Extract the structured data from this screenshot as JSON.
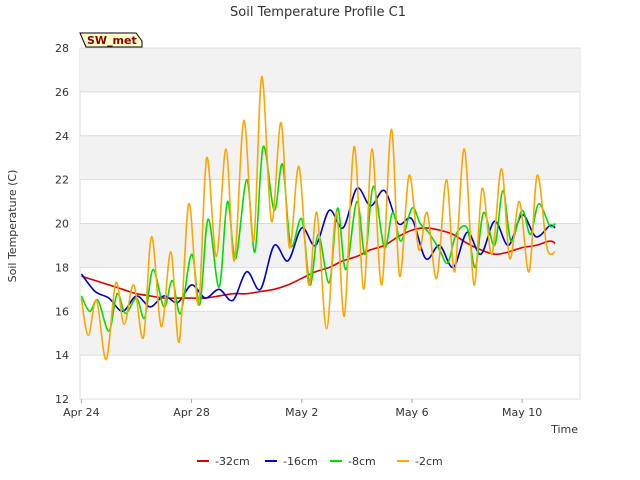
{
  "chart_data": {
    "type": "line",
    "title": "Soil Temperature Profile C1",
    "xlabel": "Time",
    "ylabel": "Soil Temperature (C)",
    "badge": "SW_met",
    "x_ticks": [
      "Apr 24",
      "Apr 28",
      "May 2",
      "May 6",
      "May 10"
    ],
    "x_range": [
      "Apr 23.95",
      "May 12.1"
    ],
    "ylim": [
      12,
      28
    ],
    "y_ticks": [
      12,
      14,
      16,
      18,
      20,
      22,
      24,
      26,
      28
    ],
    "grid": true,
    "legend_position": "bottom",
    "series": [
      {
        "name": "-32cm",
        "color": "#dd0000",
        "x": [
          0.0,
          0.5,
          1.0,
          1.5,
          2.0,
          2.5,
          3.0,
          3.5,
          4.0,
          4.5,
          5.0,
          5.5,
          6.0,
          6.5,
          7.0,
          7.5,
          8.0,
          8.5,
          9.0,
          9.5,
          10.0,
          10.5,
          11.0,
          11.5,
          12.0,
          12.5,
          13.0,
          13.5,
          14.0,
          14.5,
          15.0,
          15.5,
          16.0,
          16.5,
          17.0,
          17.2
        ],
        "values": [
          17.6,
          17.4,
          17.2,
          17.0,
          16.8,
          16.7,
          16.6,
          16.6,
          16.6,
          16.6,
          16.7,
          16.8,
          16.8,
          16.9,
          17.0,
          17.2,
          17.5,
          17.8,
          18.0,
          18.3,
          18.5,
          18.8,
          19.0,
          19.4,
          19.7,
          19.8,
          19.7,
          19.5,
          19.1,
          18.8,
          18.6,
          18.7,
          18.9,
          19.0,
          19.2,
          19.1
        ]
      },
      {
        "name": "-16cm",
        "color": "#0000cc",
        "x": [
          0.0,
          0.5,
          1.0,
          1.5,
          2.0,
          2.5,
          3.0,
          3.5,
          4.0,
          4.5,
          5.0,
          5.5,
          6.0,
          6.5,
          7.0,
          7.5,
          8.0,
          8.5,
          9.0,
          9.5,
          10.0,
          10.5,
          11.0,
          11.5,
          12.0,
          12.5,
          13.0,
          13.5,
          14.0,
          14.5,
          15.0,
          15.5,
          16.0,
          16.5,
          17.0,
          17.2
        ],
        "values": [
          17.7,
          16.9,
          16.6,
          16.0,
          16.7,
          16.2,
          16.7,
          16.4,
          17.2,
          16.6,
          17.0,
          16.5,
          17.8,
          17.0,
          19.0,
          18.3,
          19.8,
          19.0,
          20.6,
          19.8,
          21.6,
          20.8,
          21.5,
          20.0,
          20.2,
          18.4,
          19.0,
          18.0,
          19.6,
          18.6,
          20.1,
          19.0,
          20.4,
          19.4,
          19.9,
          19.8
        ]
      },
      {
        "name": "-8cm",
        "color": "#00dd00",
        "x": [
          0.0,
          0.3,
          0.6,
          1.0,
          1.3,
          1.6,
          2.0,
          2.3,
          2.6,
          3.0,
          3.3,
          3.6,
          4.0,
          4.3,
          4.6,
          5.0,
          5.3,
          5.6,
          6.0,
          6.3,
          6.6,
          7.0,
          7.3,
          7.6,
          8.0,
          8.3,
          8.6,
          9.0,
          9.3,
          9.6,
          10.0,
          10.3,
          10.6,
          11.0,
          11.3,
          11.6,
          12.0,
          12.3,
          12.6,
          13.0,
          13.3,
          13.6,
          14.0,
          14.3,
          14.6,
          15.0,
          15.3,
          15.6,
          16.0,
          16.3,
          16.6,
          17.0,
          17.2
        ],
        "values": [
          16.7,
          16.0,
          16.5,
          15.1,
          16.8,
          15.9,
          16.6,
          15.7,
          17.9,
          16.2,
          17.4,
          15.9,
          18.6,
          16.3,
          20.2,
          17.1,
          21.0,
          18.4,
          22.0,
          18.7,
          23.5,
          20.6,
          22.7,
          19.0,
          20.2,
          17.2,
          19.5,
          17.3,
          20.7,
          17.9,
          21.0,
          18.6,
          21.7,
          18.9,
          20.5,
          19.2,
          20.7,
          20.0,
          19.6,
          18.8,
          18.2,
          19.5,
          19.8,
          18.0,
          20.5,
          19.0,
          21.5,
          19.2,
          20.6,
          19.5,
          20.9,
          19.9,
          20.0
        ]
      },
      {
        "name": "-2cm",
        "color": "#ffa500",
        "x": [
          0.0,
          0.25,
          0.55,
          0.9,
          1.25,
          1.55,
          1.9,
          2.25,
          2.55,
          2.9,
          3.25,
          3.55,
          3.9,
          4.25,
          4.55,
          4.9,
          5.25,
          5.55,
          5.9,
          6.25,
          6.55,
          6.9,
          7.25,
          7.55,
          7.9,
          8.25,
          8.55,
          8.9,
          9.25,
          9.55,
          9.9,
          10.25,
          10.55,
          10.9,
          11.25,
          11.55,
          11.9,
          12.25,
          12.55,
          12.9,
          13.25,
          13.55,
          13.9,
          14.25,
          14.55,
          14.9,
          15.25,
          15.55,
          15.9,
          16.25,
          16.55,
          16.9,
          17.2
        ],
        "values": [
          16.6,
          14.9,
          16.5,
          13.8,
          17.3,
          15.4,
          17.2,
          14.8,
          19.4,
          15.3,
          18.7,
          14.6,
          20.9,
          16.3,
          23.0,
          18.5,
          23.4,
          18.3,
          24.7,
          19.2,
          26.7,
          20.1,
          24.6,
          18.9,
          22.6,
          17.2,
          20.5,
          15.2,
          20.5,
          15.8,
          23.5,
          17.0,
          23.4,
          17.2,
          24.3,
          17.6,
          22.2,
          18.8,
          20.5,
          17.5,
          22.0,
          17.8,
          23.4,
          17.2,
          21.6,
          18.6,
          22.5,
          18.4,
          21.0,
          17.8,
          22.2,
          18.9,
          18.7
        ]
      }
    ]
  }
}
